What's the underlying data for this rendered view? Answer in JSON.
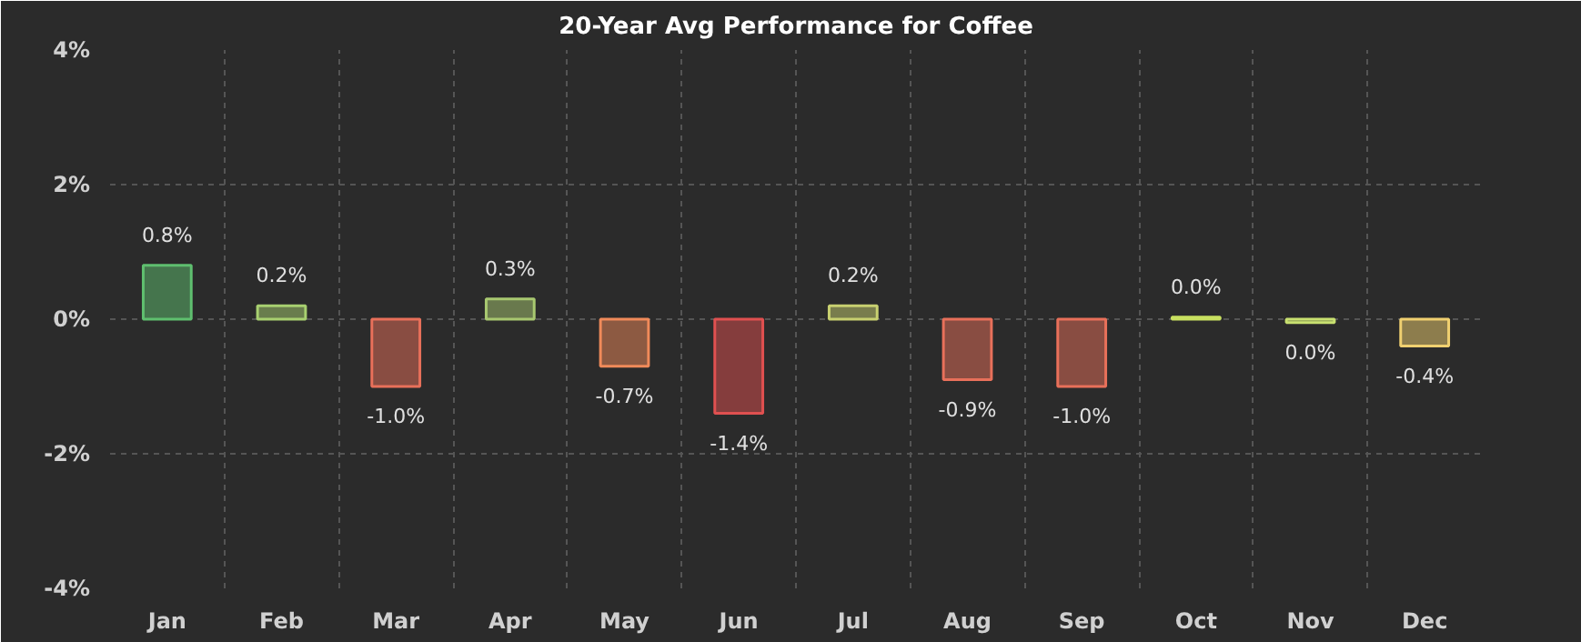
{
  "chart_data": {
    "type": "bar",
    "title": "20-Year Avg Performance for Coffee",
    "categories": [
      "Jan",
      "Feb",
      "Mar",
      "Apr",
      "May",
      "Jun",
      "Jul",
      "Aug",
      "Sep",
      "Oct",
      "Nov",
      "Dec"
    ],
    "values": [
      0.8,
      0.2,
      -1.0,
      0.3,
      -0.7,
      -1.4,
      0.2,
      -0.9,
      -1.0,
      0.03,
      -0.05,
      -0.4
    ],
    "value_labels": [
      "0.8%",
      "0.2%",
      "-1.0%",
      "0.3%",
      "-0.7%",
      "-1.4%",
      "0.2%",
      "-0.9%",
      "-1.0%",
      "0.0%",
      "0.0%",
      "-0.4%"
    ],
    "colors": [
      "#5fbf6f",
      "#a8d070",
      "#e8705a",
      "#a8c870",
      "#f08a5a",
      "#e05050",
      "#c8d070",
      "#e8705a",
      "#e8705a",
      "#c8e060",
      "#c8e070",
      "#f0d070"
    ],
    "ylim": [
      -4,
      4
    ],
    "yticks": [
      {
        "value": -4,
        "label": "-4%"
      },
      {
        "value": -2,
        "label": "-2%"
      },
      {
        "value": 0,
        "label": "0%"
      },
      {
        "value": 2,
        "label": "2%"
      },
      {
        "value": 4,
        "label": "4%"
      }
    ],
    "grid": true
  }
}
